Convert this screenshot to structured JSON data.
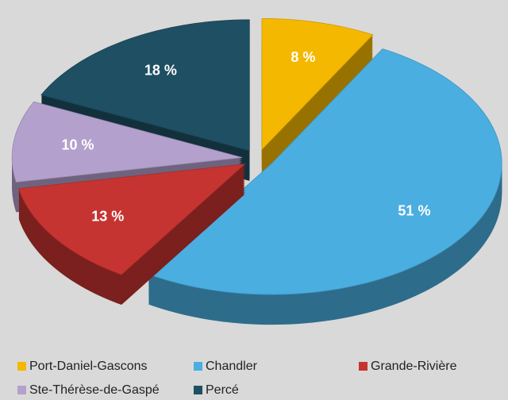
{
  "chart_data": {
    "type": "pie",
    "categories": [
      "Port-Daniel-Gascons",
      "Chandler",
      "Grande-Rivière",
      "Ste-Thérèse-de-Gaspé",
      "Percé"
    ],
    "values": [
      8,
      51,
      13,
      10,
      18
    ],
    "value_labels": [
      "8 %",
      "51 %",
      "13 %",
      "10 %",
      "18 %"
    ],
    "colors": [
      "#f5b800",
      "#4aaee0",
      "#c63431",
      "#b3a0cc",
      "#1f4f63"
    ],
    "legend": "bottom"
  }
}
